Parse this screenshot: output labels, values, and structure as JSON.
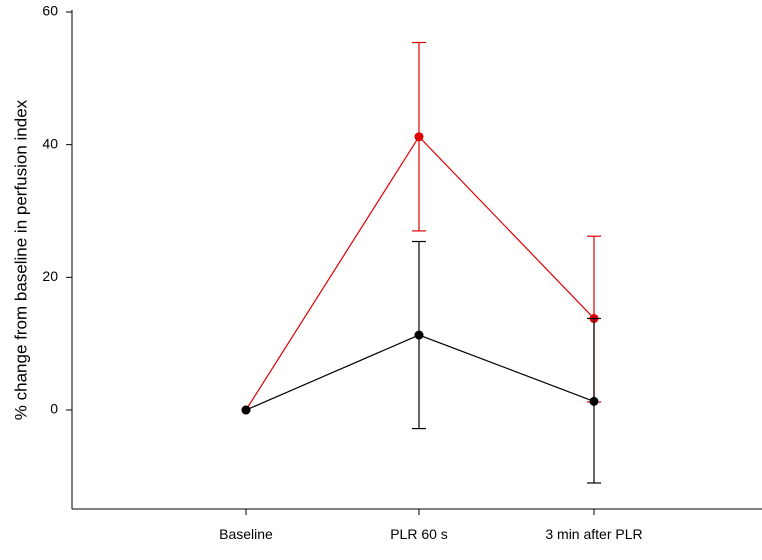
{
  "chart_data": {
    "type": "line",
    "title": "",
    "xlabel": "",
    "ylabel": "% change from baseline in perfusion index",
    "categories": [
      "Baseline",
      "PLR 60 s",
      "3 min after PLR"
    ],
    "yticks": [
      0,
      20,
      40,
      60
    ],
    "ylim": [
      -15,
      60
    ],
    "grid": false,
    "legend": "none",
    "series": [
      {
        "color": "#e00000",
        "values": [
          0,
          41.2,
          13.8
        ],
        "err_low": [
          0,
          27.0,
          1.2
        ],
        "err_high": [
          0,
          55.4,
          26.2
        ]
      },
      {
        "color": "#000000",
        "values": [
          0,
          11.3,
          1.3
        ],
        "err_low": [
          0,
          -2.8,
          -11.0
        ],
        "err_high": [
          0,
          25.4,
          13.8
        ]
      }
    ]
  }
}
